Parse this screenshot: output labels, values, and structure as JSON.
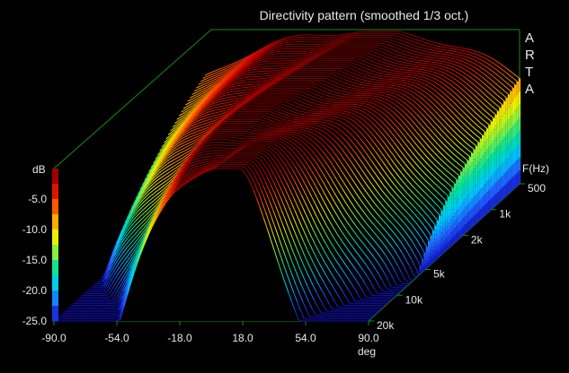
{
  "chart_data": {
    "type": "waterfall-3d",
    "title": "Directivity pattern (smoothed 1/3 oct.)",
    "brand": [
      "A",
      "R",
      "T",
      "A"
    ],
    "x_axis": {
      "label": "deg",
      "range": [
        -90,
        90
      ],
      "ticks": [
        "-90.0",
        "-54.0",
        "-18.0",
        "18.0",
        "54.0",
        "90.0"
      ]
    },
    "z_axis": {
      "label": "dB",
      "range": [
        -25,
        0
      ],
      "ticks": [
        "-5.0",
        "-10.0",
        "-15.0",
        "-20.0",
        "-25.0"
      ]
    },
    "y_axis": {
      "label": "F(Hz)",
      "scale": "log",
      "range": [
        500,
        20000
      ],
      "ticks": [
        "500",
        "1k",
        "2k",
        "5k",
        "10k",
        "20k"
      ]
    },
    "colormap": [
      "#1010c8",
      "#2060ff",
      "#00c8ff",
      "#00e0a0",
      "#80f040",
      "#f0f000",
      "#ffa000",
      "#ff4000",
      "#c80000",
      "#800000"
    ],
    "grid": false
  }
}
